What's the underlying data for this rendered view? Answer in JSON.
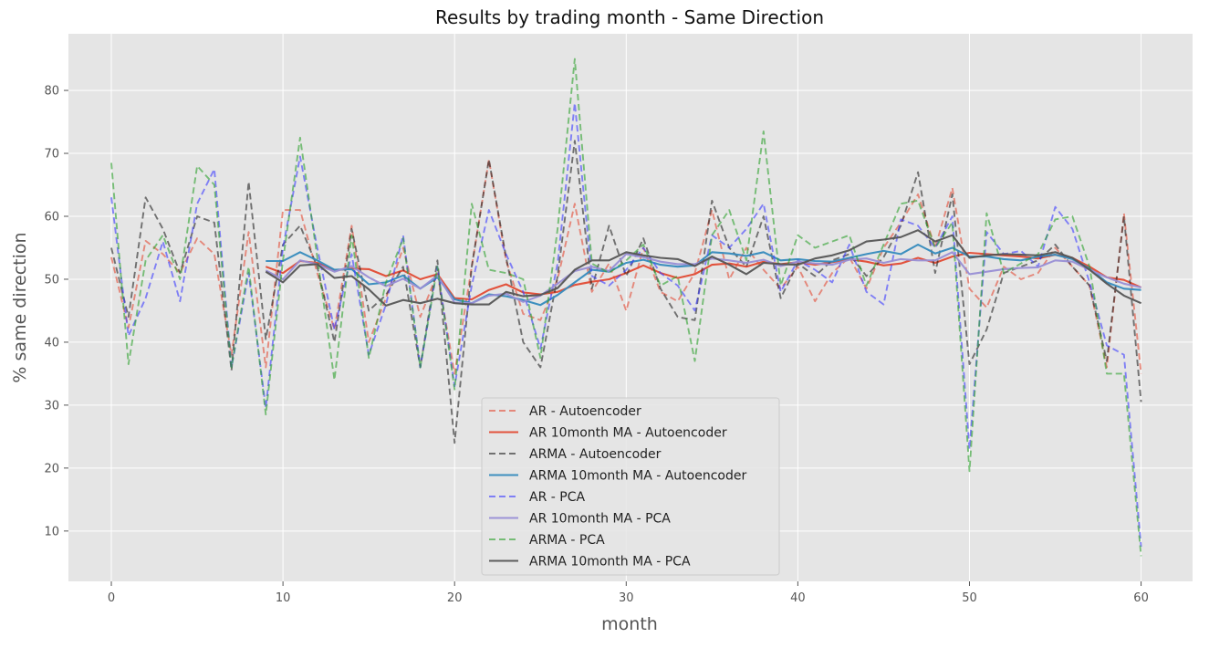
{
  "chart_data": {
    "type": "line",
    "title": "Results by trading month - Same Direction",
    "xlabel": "month",
    "ylabel": "% same direction",
    "xlim": [
      -2.5,
      63
    ],
    "ylim": [
      2,
      89
    ],
    "xticks": [
      0,
      10,
      20,
      30,
      40,
      50,
      60
    ],
    "yticks": [
      10,
      20,
      30,
      40,
      50,
      60,
      70,
      80
    ],
    "grid": true,
    "legend_position": "lower-center",
    "background": "#e5e5e5",
    "series": [
      {
        "name": "AR - Autoencoder",
        "color": "#e24a33",
        "style": "dashed",
        "opacity": 0.6,
        "x": [
          0,
          1,
          2,
          3,
          4,
          5,
          6,
          7,
          8,
          9,
          10,
          11,
          12,
          13,
          14,
          15,
          16,
          17,
          18,
          19,
          20,
          21,
          22,
          23,
          24,
          25,
          26,
          27,
          28,
          29,
          30,
          31,
          32,
          33,
          34,
          35,
          36,
          37,
          38,
          39,
          40,
          41,
          42,
          43,
          44,
          45,
          46,
          47,
          48,
          49,
          50,
          51,
          52,
          53,
          54,
          55,
          56,
          57,
          58,
          59,
          60
        ],
        "values": [
          53.5,
          42.3,
          56.1,
          54.0,
          51.0,
          56.5,
          54.0,
          38.0,
          57.5,
          36.0,
          61.0,
          61.0,
          51.0,
          42.0,
          58.5,
          40.0,
          47.0,
          55.0,
          44.0,
          51.0,
          35.0,
          52.0,
          69.0,
          53.0,
          44.5,
          43.5,
          50.0,
          62.0,
          48.0,
          52.5,
          45.0,
          55.0,
          48.0,
          46.5,
          51.0,
          61.0,
          50.0,
          55.0,
          51.5,
          48.5,
          52.0,
          46.5,
          51.0,
          53.5,
          48.5,
          55.0,
          59.0,
          63.5,
          55.0,
          64.5,
          48.5,
          45.5,
          52.0,
          50.0,
          51.0,
          55.0,
          52.0,
          49.0,
          36.0,
          60.5,
          35.0
        ]
      },
      {
        "name": "AR 10month MA - Autoencoder",
        "color": "#e24a33",
        "style": "solid",
        "opacity": 0.95,
        "x": [
          9,
          10,
          11,
          12,
          13,
          14,
          15,
          16,
          17,
          18,
          19,
          20,
          21,
          22,
          23,
          24,
          25,
          26,
          27,
          28,
          29,
          30,
          31,
          32,
          33,
          34,
          35,
          36,
          37,
          38,
          39,
          40,
          41,
          42,
          43,
          44,
          45,
          46,
          47,
          48,
          49,
          50,
          51,
          52,
          53,
          54,
          55,
          56,
          57,
          58,
          59,
          60
        ],
        "values": [
          52.0,
          51.0,
          52.9,
          52.6,
          51.4,
          51.7,
          51.6,
          50.5,
          51.4,
          50.0,
          50.8,
          47.0,
          46.8,
          48.3,
          49.2,
          47.9,
          47.6,
          48.0,
          49.1,
          49.6,
          50.0,
          51.0,
          52.2,
          51.0,
          50.2,
          50.8,
          52.3,
          52.5,
          52.0,
          52.8,
          52.4,
          52.7,
          52.3,
          52.7,
          53.2,
          52.8,
          52.2,
          52.5,
          53.4,
          52.6,
          53.6,
          54.2,
          54.0,
          53.8,
          53.6,
          53.3,
          53.9,
          53.4,
          52.0,
          50.3,
          49.9,
          48.7
        ]
      },
      {
        "name": "ARMA - Autoencoder",
        "color": "#222222",
        "style": "dashed",
        "opacity": 0.6,
        "x": [
          0,
          1,
          2,
          3,
          4,
          5,
          6,
          7,
          8,
          9,
          10,
          11,
          12,
          13,
          14,
          15,
          16,
          17,
          18,
          19,
          20,
          21,
          22,
          23,
          24,
          25,
          26,
          27,
          28,
          29,
          30,
          31,
          32,
          33,
          34,
          35,
          36,
          37,
          38,
          39,
          40,
          41,
          42,
          43,
          44,
          45,
          46,
          47,
          48,
          49,
          50,
          51,
          52,
          53,
          54,
          55,
          56,
          57,
          58,
          59,
          60
        ],
        "values": [
          55.0,
          44.0,
          63.0,
          58.0,
          51.0,
          60.0,
          59.0,
          35.5,
          65.5,
          40.5,
          55.5,
          58.5,
          52.0,
          40.0,
          58.0,
          45.0,
          47.5,
          52.0,
          36.0,
          53.0,
          24.0,
          52.0,
          69.0,
          53.5,
          40.0,
          36.0,
          50.5,
          72.0,
          48.5,
          58.5,
          50.5,
          56.5,
          48.5,
          44.0,
          43.5,
          62.5,
          55.0,
          52.0,
          60.0,
          47.0,
          52.5,
          50.5,
          53.0,
          54.0,
          50.5,
          53.5,
          58.5,
          67.0,
          51.0,
          63.5,
          36.5,
          42.0,
          51.0,
          52.0,
          53.0,
          55.5,
          52.0,
          49.0,
          37.0,
          60.0,
          30.5
        ]
      },
      {
        "name": "ARMA 10month MA - Autoencoder",
        "color": "#348abd",
        "style": "solid",
        "opacity": 0.95,
        "x": [
          9,
          10,
          11,
          12,
          13,
          14,
          15,
          16,
          17,
          18,
          19,
          20,
          21,
          22,
          23,
          24,
          25,
          26,
          27,
          28,
          29,
          30,
          31,
          32,
          33,
          34,
          35,
          36,
          37,
          38,
          39,
          40,
          41,
          42,
          43,
          44,
          45,
          46,
          47,
          48,
          49,
          50,
          51,
          52,
          53,
          54,
          55,
          56,
          57,
          58,
          59,
          60
        ],
        "values": [
          52.9,
          52.9,
          54.3,
          53.0,
          51.5,
          51.6,
          49.2,
          49.5,
          50.6,
          48.5,
          50.3,
          46.8,
          46.2,
          47.6,
          47.3,
          46.7,
          45.9,
          47.5,
          49.5,
          51.5,
          51.2,
          52.6,
          53.1,
          52.3,
          52.0,
          52.2,
          54.3,
          54.1,
          53.7,
          54.3,
          53.0,
          53.2,
          52.9,
          52.8,
          53.4,
          54.0,
          54.5,
          54.0,
          55.5,
          54.1,
          55.0,
          53.6,
          53.6,
          53.2,
          53.0,
          53.6,
          53.9,
          53.2,
          51.7,
          49.5,
          48.5,
          48.3
        ]
      },
      {
        "name": "AR - PCA",
        "color": "#3b3bff",
        "style": "dashed",
        "opacity": 0.6,
        "x": [
          0,
          1,
          2,
          3,
          4,
          5,
          6,
          7,
          8,
          9,
          10,
          11,
          12,
          13,
          14,
          15,
          16,
          17,
          18,
          19,
          20,
          21,
          22,
          23,
          24,
          25,
          26,
          27,
          28,
          29,
          30,
          31,
          32,
          33,
          34,
          35,
          36,
          37,
          38,
          39,
          40,
          41,
          42,
          43,
          44,
          45,
          46,
          47,
          48,
          49,
          50,
          51,
          52,
          53,
          54,
          55,
          56,
          57,
          58,
          59,
          60
        ],
        "values": [
          63.0,
          41.0,
          47.0,
          56.0,
          46.5,
          62.0,
          67.5,
          36.0,
          51.0,
          29.5,
          55.0,
          69.5,
          55.0,
          42.0,
          54.0,
          38.0,
          46.0,
          57.0,
          36.0,
          52.0,
          33.0,
          49.0,
          61.0,
          54.0,
          48.0,
          39.0,
          52.5,
          78.0,
          50.5,
          49.0,
          51.5,
          55.0,
          51.0,
          49.0,
          45.0,
          57.0,
          55.0,
          58.0,
          62.0,
          48.0,
          53.0,
          51.5,
          49.5,
          55.5,
          48.0,
          46.0,
          59.5,
          58.5,
          55.0,
          60.0,
          23.0,
          57.5,
          54.0,
          54.5,
          52.0,
          61.5,
          58.0,
          49.5,
          39.5,
          38.0,
          7.5
        ]
      },
      {
        "name": "AR 10month MA - PCA",
        "color": "#988ed5",
        "style": "solid",
        "opacity": 0.95,
        "x": [
          9,
          10,
          11,
          12,
          13,
          14,
          15,
          16,
          17,
          18,
          19,
          20,
          21,
          22,
          23,
          24,
          25,
          26,
          27,
          28,
          29,
          30,
          31,
          32,
          33,
          34,
          35,
          36,
          37,
          38,
          39,
          40,
          41,
          42,
          43,
          44,
          45,
          46,
          47,
          48,
          49,
          50,
          51,
          52,
          53,
          54,
          55,
          56,
          57,
          58,
          59,
          60
        ],
        "values": [
          51.4,
          50.0,
          53.0,
          52.4,
          51.2,
          52.1,
          50.3,
          48.9,
          50.1,
          48.5,
          50.6,
          46.3,
          46.2,
          47.4,
          47.7,
          46.4,
          47.4,
          49.3,
          51.3,
          52.0,
          51.3,
          54.0,
          53.5,
          52.8,
          52.4,
          52.4,
          53.3,
          53.0,
          52.6,
          53.1,
          52.1,
          52.8,
          52.5,
          52.3,
          53.1,
          53.3,
          52.6,
          53.2,
          53.0,
          53.0,
          54.3,
          50.8,
          51.2,
          51.6,
          51.8,
          51.9,
          53.0,
          52.8,
          51.5,
          50.3,
          49.3,
          48.7
        ]
      },
      {
        "name": "ARMA - PCA",
        "color": "#2ca02c",
        "style": "dashed",
        "opacity": 0.6,
        "x": [
          0,
          1,
          2,
          3,
          4,
          5,
          6,
          7,
          8,
          9,
          10,
          11,
          12,
          13,
          14,
          15,
          16,
          17,
          18,
          19,
          20,
          21,
          22,
          23,
          24,
          25,
          26,
          27,
          28,
          29,
          30,
          31,
          32,
          33,
          34,
          35,
          36,
          37,
          38,
          39,
          40,
          41,
          42,
          43,
          44,
          45,
          46,
          47,
          48,
          49,
          50,
          51,
          52,
          53,
          54,
          55,
          56,
          57,
          58,
          59,
          60
        ],
        "values": [
          68.5,
          36.5,
          53.0,
          57.0,
          50.0,
          68.0,
          65.0,
          36.0,
          52.0,
          28.5,
          53.0,
          72.5,
          53.5,
          34.0,
          57.0,
          37.5,
          49.5,
          56.5,
          36.0,
          52.0,
          32.5,
          62.0,
          51.5,
          51.0,
          50.0,
          37.5,
          58.0,
          85.0,
          52.5,
          51.0,
          53.0,
          55.5,
          49.0,
          50.5,
          37.0,
          57.0,
          61.0,
          53.0,
          73.5,
          49.0,
          57.0,
          55.0,
          56.0,
          57.0,
          49.0,
          55.5,
          62.0,
          62.5,
          55.0,
          59.0,
          19.5,
          60.5,
          51.0,
          52.5,
          54.0,
          59.5,
          60.0,
          52.0,
          35.0,
          35.0,
          6.0
        ]
      },
      {
        "name": "ARMA 10month MA - PCA",
        "color": "#555555",
        "style": "solid",
        "opacity": 0.95,
        "x": [
          9,
          10,
          11,
          12,
          13,
          14,
          15,
          16,
          17,
          18,
          19,
          20,
          21,
          22,
          23,
          24,
          25,
          26,
          27,
          28,
          29,
          30,
          31,
          32,
          33,
          34,
          35,
          36,
          37,
          38,
          39,
          40,
          41,
          42,
          43,
          44,
          45,
          46,
          47,
          48,
          49,
          50,
          51,
          52,
          53,
          54,
          55,
          56,
          57,
          58,
          59,
          60
        ],
        "values": [
          51.2,
          49.5,
          52.2,
          52.4,
          50.2,
          50.5,
          48.4,
          45.8,
          46.7,
          46.2,
          46.9,
          46.2,
          46.0,
          46.0,
          48.0,
          47.3,
          47.5,
          48.6,
          51.5,
          53.0,
          53.0,
          54.3,
          53.8,
          53.4,
          53.2,
          52.1,
          53.6,
          52.3,
          50.8,
          52.6,
          52.4,
          52.3,
          53.3,
          53.8,
          54.6,
          56.0,
          56.3,
          56.7,
          57.8,
          56.0,
          57.0,
          53.4,
          53.8,
          54.0,
          53.9,
          53.8,
          54.3,
          53.4,
          51.5,
          49.3,
          47.4,
          46.2
        ]
      }
    ]
  }
}
